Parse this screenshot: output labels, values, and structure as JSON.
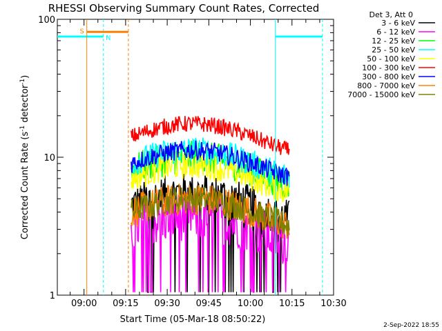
{
  "chart_data": {
    "type": "line",
    "title": "RHESSI Observing Summary Count Rates, Corrected",
    "xlabel": "Start Time (05-Mar-18 08:50:22)",
    "ylabel_main": "Corrected Count Rate (s",
    "ylabel_sup1": "-1",
    "ylabel_mid": " detector",
    "ylabel_sup2": "-1",
    "ylabel_end": ")",
    "x_scale": "time",
    "x_range": [
      "08:50:22",
      "10:30:00"
    ],
    "x_ticks": [
      "09:00",
      "09:15",
      "09:30",
      "09:45",
      "10:00",
      "10:15",
      "10:30"
    ],
    "y_scale": "log",
    "y_range": [
      1,
      100
    ],
    "y_ticks": [
      "1",
      "10",
      "100"
    ],
    "legend_header": "Det 3, Att 0",
    "legend_position": "right",
    "data_span": [
      "09:17",
      "10:14"
    ],
    "series": [
      {
        "name": "3 - 6 keV",
        "color": "#000000",
        "approx_level": 4.5
      },
      {
        "name": "6 - 12 keV",
        "color": "#ff00ff",
        "approx_level": 3.0
      },
      {
        "name": "12 - 25 keV",
        "color": "#00ff00",
        "approx_level": 8.0
      },
      {
        "name": "25 - 50 keV",
        "color": "#00ffff",
        "approx_level": 9.0
      },
      {
        "name": "50 - 100 keV",
        "color": "#ffff00",
        "approx_level": 7.0
      },
      {
        "name": "100 - 300 keV",
        "color": "#ff0000",
        "approx_level": 14.0
      },
      {
        "name": "300 - 800 keV",
        "color": "#0000ff",
        "approx_level": 9.0
      },
      {
        "name": "800 - 7000 keV",
        "color": "#ff8000",
        "approx_level": 4.0
      },
      {
        "name": "7000 - 15000 keV",
        "color": "#808000",
        "approx_level": 4.0
      }
    ],
    "annotations": [
      {
        "label": "S",
        "color": "#ff8000"
      },
      {
        "label": "N",
        "color": "#00ffff"
      }
    ],
    "night_intervals": [
      [
        "08:50:22",
        "09:07"
      ],
      [
        "10:09",
        "10:26"
      ]
    ],
    "saa_intervals": [
      [
        "09:01",
        "09:16"
      ]
    ],
    "footer_date": "2-Sep-2022 18:55"
  }
}
